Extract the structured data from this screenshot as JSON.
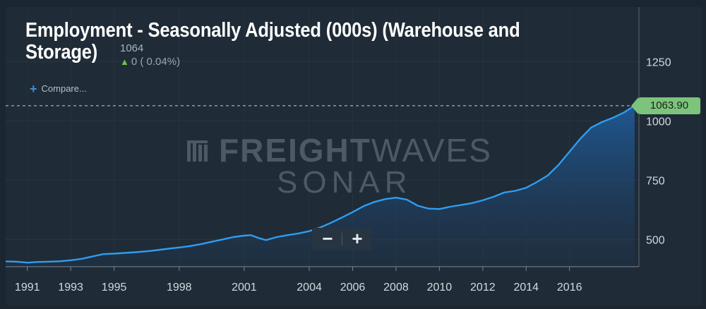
{
  "header": {
    "title": "Employment - Seasonally Adjusted (000s) (Warehouse and Storage)",
    "price": "1064",
    "change": "0 ( 0.04%)",
    "compare_label": "Compare..."
  },
  "watermark": {
    "line1_bold": "FREIGHT",
    "line1_thin": "WAVES",
    "line2": "SONAR"
  },
  "zoom": {
    "minus": "−",
    "plus": "+"
  },
  "colors": {
    "line": "#2e9df0",
    "badge": "#7cc47c",
    "background": "#1f2b36"
  },
  "chart_data": {
    "type": "area",
    "title": "Employment - Seasonally Adjusted (000s) (Warehouse and Storage)",
    "xlabel": "",
    "ylabel": "",
    "ylim": [
      385,
      1480
    ],
    "xlim": [
      1990.0,
      2019.2
    ],
    "yticks": [
      500,
      750,
      1000,
      1250
    ],
    "xticks": [
      "1991",
      "1993",
      "1995",
      "1998",
      "2001",
      "2004",
      "2006",
      "2008",
      "2010",
      "2012",
      "2014",
      "2016"
    ],
    "last_value_label": "1063.90",
    "last_value": 1063.9,
    "x": [
      1990.0,
      1990.5,
      1991.0,
      1991.5,
      1992.0,
      1992.5,
      1993.0,
      1993.5,
      1994.0,
      1994.5,
      1995.0,
      1995.5,
      1996.0,
      1996.5,
      1997.0,
      1997.5,
      1998.0,
      1998.5,
      1999.0,
      1999.5,
      2000.0,
      2000.5,
      2001.0,
      2001.3,
      2001.7,
      2002.0,
      2002.5,
      2003.0,
      2003.5,
      2004.0,
      2004.5,
      2005.0,
      2005.5,
      2006.0,
      2006.5,
      2007.0,
      2007.5,
      2008.0,
      2008.5,
      2009.0,
      2009.5,
      2010.0,
      2010.5,
      2011.0,
      2011.5,
      2012.0,
      2012.5,
      2013.0,
      2013.5,
      2014.0,
      2014.5,
      2015.0,
      2015.5,
      2016.0,
      2016.5,
      2017.0,
      2017.5,
      2018.0,
      2018.5,
      2019.0
    ],
    "y": [
      407,
      406,
      402,
      405,
      406,
      408,
      412,
      418,
      428,
      438,
      440,
      443,
      446,
      450,
      455,
      461,
      466,
      472,
      480,
      490,
      500,
      510,
      516,
      518,
      505,
      497,
      510,
      518,
      525,
      535,
      550,
      570,
      592,
      615,
      640,
      658,
      670,
      676,
      668,
      642,
      630,
      628,
      638,
      645,
      653,
      665,
      680,
      698,
      705,
      718,
      742,
      770,
      815,
      870,
      925,
      972,
      995,
      1013,
      1035,
      1064
    ]
  }
}
